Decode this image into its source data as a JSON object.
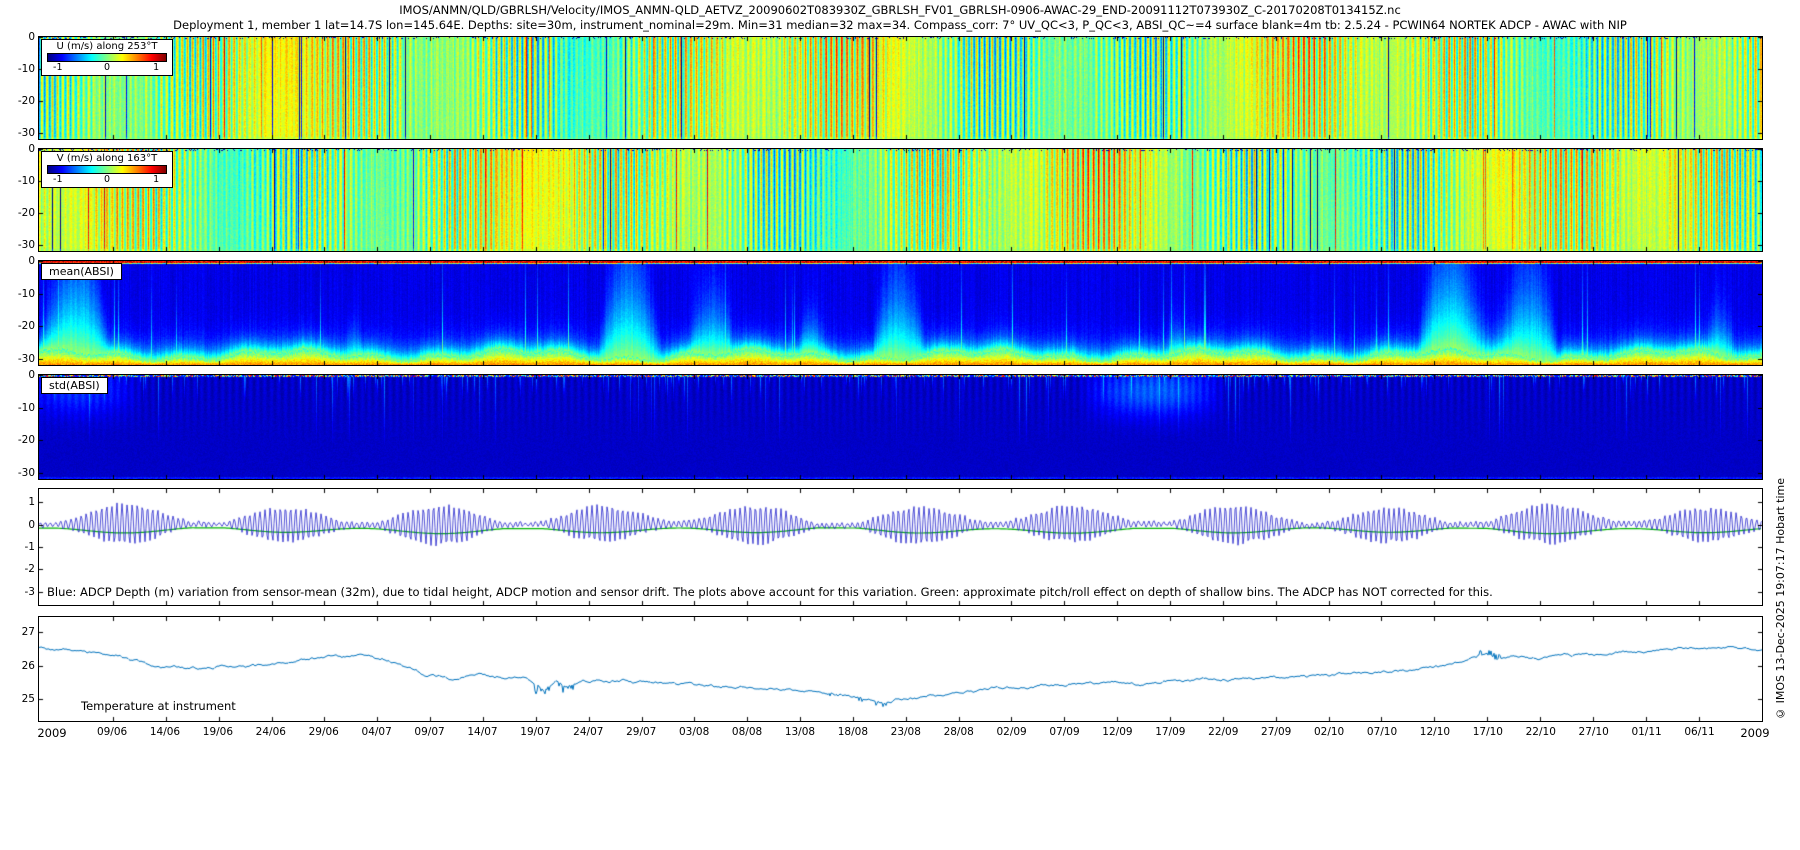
{
  "title_line1": "IMOS/ANMN/QLD/GBRLSH/Velocity/IMOS_ANMN-QLD_AETVZ_20090602T083930Z_GBRLSH_FV01_GBRLSH-0906-AWAC-29_END-20091112T073930Z_C-20170208T013415Z.nc",
  "title_line2": "Deployment 1, member 1 lat=14.7S lon=145.64E. Depths: site=30m, instrument_nominal=29m. Min=31 median=32 max=34. Compass_corr: 7° UV_QC<3, P_QC<3, ABSI_QC~=4 surface blank=4m tb: 2.5.24 - PCWIN64 NORTEK ADCP - AWAC with NIP",
  "copyright": "© IMOS 13-Dec-2025 19:07:17 Hobart time",
  "x_axis": {
    "year_left": "2009",
    "year_right": "2009",
    "first_tick_day": 7,
    "tick_step_days": 5,
    "span_days": 163,
    "tick_labels": [
      "09/06",
      "14/06",
      "19/06",
      "24/06",
      "29/06",
      "04/07",
      "09/07",
      "14/07",
      "19/07",
      "24/07",
      "29/07",
      "03/08",
      "08/08",
      "13/08",
      "18/08",
      "23/08",
      "28/08",
      "02/09",
      "07/09",
      "12/09",
      "17/09",
      "22/09",
      "27/09",
      "02/10",
      "07/10",
      "12/10",
      "17/10",
      "22/10",
      "27/10",
      "01/11",
      "06/11"
    ]
  },
  "chart_data": [
    {
      "id": "u_velocity",
      "type": "heatmap",
      "texture": "uv",
      "seed": 11,
      "label": "U (m/s) along 253°T",
      "colormap": "jet",
      "clim": [
        -1,
        1
      ],
      "colorbar_ticks": [
        "-1",
        "0",
        "1"
      ],
      "ylim": [
        0,
        -32
      ],
      "yticks": [
        0,
        -10,
        -20,
        -30
      ],
      "value_description": "eastward-rotated velocity, mostly 0 to +0.4 m/s (green-yellow vertical tidal striping) with sparse strong negative (dark blue) columns"
    },
    {
      "id": "v_velocity",
      "type": "heatmap",
      "texture": "uv",
      "seed": 77,
      "label": "V (m/s) along 163°T",
      "colormap": "jet",
      "clim": [
        -1,
        1
      ],
      "colorbar_ticks": [
        "-1",
        "0",
        "1"
      ],
      "ylim": [
        0,
        -32
      ],
      "yticks": [
        0,
        -10,
        -20,
        -30
      ],
      "value_description": "northward-rotated velocity, similar green-yellow tidal striping with sparse dark blue columns"
    },
    {
      "id": "mean_absi",
      "type": "heatmap",
      "texture": "mean_absi",
      "seed": 5,
      "label": "mean(ABSI)",
      "colormap": "jet",
      "ylim": [
        0,
        -32
      ],
      "yticks": [
        0,
        -10,
        -20,
        -30
      ],
      "value_description": "acoustic backscatter: dark blue water column, green/yellow near-bottom band with cyan plumes rising, thin red band at surface"
    },
    {
      "id": "std_absi",
      "type": "heatmap",
      "texture": "std_absi",
      "seed": 9,
      "label": "std(ABSI)",
      "colormap": "jet",
      "ylim": [
        0,
        -32
      ],
      "yticks": [
        0,
        -10,
        -20,
        -30
      ],
      "value_description": "backscatter standard deviation: dark navy field with faint vertical streaks, speckled red/yellow surface line, brighter blue patches mid-record"
    },
    {
      "id": "adcp_depth_variation",
      "type": "line",
      "ylim": [
        1.6,
        -3.6
      ],
      "yticks": [
        1,
        0,
        -1,
        -2,
        -3
      ],
      "spring_neap_cycles": 10.9,
      "amplitude_range_m": [
        0.1,
        0.92
      ],
      "green_mean_m": -0.13,
      "caption": "Blue: ADCP Depth (m) variation from sensor-mean (32m), due to tidal height, ADCP motion and sensor drift. The plots above account for this variation. Green: approximate pitch/roll effect on depth of shallow bins. The ADCP has NOT corrected for this.",
      "series": [
        {
          "name": "adcp-depth-variation-blue",
          "color": "#2222cc"
        },
        {
          "name": "pitch-roll-effect-green",
          "color": "#00b300"
        }
      ]
    },
    {
      "id": "temperature",
      "type": "line",
      "label": "Temperature at instrument",
      "ylim": [
        27.45,
        24.35
      ],
      "yticks": [
        27,
        26,
        25
      ],
      "series": [
        {
          "name": "temperature-at-instrument",
          "color": "#0072bd",
          "points": [
            [
              0.0,
              26.55
            ],
            [
              0.02,
              26.45
            ],
            [
              0.045,
              26.3
            ],
            [
              0.07,
              25.95
            ],
            [
              0.09,
              25.9
            ],
            [
              0.105,
              26.0
            ],
            [
              0.12,
              25.95
            ],
            [
              0.14,
              26.1
            ],
            [
              0.165,
              26.25
            ],
            [
              0.185,
              26.3
            ],
            [
              0.2,
              26.2
            ],
            [
              0.225,
              25.7
            ],
            [
              0.24,
              25.62
            ],
            [
              0.255,
              25.78
            ],
            [
              0.27,
              25.65
            ],
            [
              0.283,
              25.6
            ],
            [
              0.293,
              25.25
            ],
            [
              0.3,
              25.55
            ],
            [
              0.306,
              25.3
            ],
            [
              0.315,
              25.6
            ],
            [
              0.33,
              25.55
            ],
            [
              0.35,
              25.5
            ],
            [
              0.38,
              25.42
            ],
            [
              0.41,
              25.35
            ],
            [
              0.44,
              25.28
            ],
            [
              0.46,
              25.15
            ],
            [
              0.475,
              25.05
            ],
            [
              0.49,
              24.92
            ],
            [
              0.503,
              25.0
            ],
            [
              0.52,
              25.1
            ],
            [
              0.534,
              25.2
            ],
            [
              0.55,
              25.3
            ],
            [
              0.564,
              25.35
            ],
            [
              0.595,
              25.45
            ],
            [
              0.626,
              25.5
            ],
            [
              0.64,
              25.42
            ],
            [
              0.656,
              25.55
            ],
            [
              0.687,
              25.6
            ],
            [
              0.718,
              25.65
            ],
            [
              0.748,
              25.72
            ],
            [
              0.779,
              25.82
            ],
            [
              0.8,
              25.9
            ],
            [
              0.812,
              25.96
            ],
            [
              0.826,
              26.1
            ],
            [
              0.84,
              26.35
            ],
            [
              0.846,
              26.18
            ],
            [
              0.856,
              26.3
            ],
            [
              0.871,
              26.2
            ],
            [
              0.886,
              26.3
            ],
            [
              0.902,
              26.32
            ],
            [
              0.92,
              26.4
            ],
            [
              0.933,
              26.45
            ],
            [
              0.95,
              26.55
            ],
            [
              0.963,
              26.5
            ],
            [
              0.98,
              26.55
            ],
            [
              1.0,
              26.45
            ]
          ]
        }
      ]
    }
  ]
}
